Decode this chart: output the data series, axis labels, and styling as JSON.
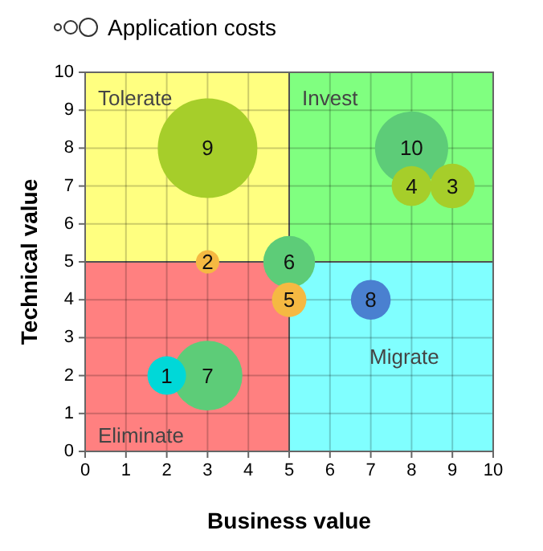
{
  "chart_data": {
    "type": "bubble",
    "xlabel": "Business value",
    "ylabel": "Technical value",
    "xlim": [
      0,
      10
    ],
    "ylim": [
      0,
      10
    ],
    "xticks": [
      0,
      1,
      2,
      3,
      4,
      5,
      6,
      7,
      8,
      9,
      10
    ],
    "yticks": [
      0,
      1,
      2,
      3,
      4,
      5,
      6,
      7,
      8,
      9,
      10
    ],
    "grid": true,
    "legend": "top left",
    "series": [
      {
        "name": "Application costs",
        "x": [
          3,
          8,
          3,
          5,
          9,
          8,
          7,
          2,
          5,
          3
        ],
        "values": [
          8,
          8,
          2,
          5,
          7,
          7,
          4,
          2,
          4,
          5
        ],
        "sizes": [
          1,
          0.54,
          0.49,
          0.27,
          0.2,
          0.16,
          0.16,
          0.15,
          0.12,
          0.055
        ],
        "colors": [
          "#a6ce2a",
          "#5dcc78",
          "#5dcc78",
          "#5dcc78",
          "#a6ce2a",
          "#a6ce2a",
          "#4a80d0",
          "#00d8d8",
          "#f5b942",
          "#f5b942"
        ]
      }
    ],
    "annotations": [
      "Tolerate",
      "Invest",
      "Eliminate",
      "Migrate",
      {
        "text": "9",
        "x": 3,
        "y": 8
      },
      {
        "text": "10",
        "x": 8,
        "y": 8
      },
      {
        "text": "7",
        "x": 3,
        "y": 2
      },
      {
        "text": "6",
        "x": 5,
        "y": 5
      },
      {
        "text": "3",
        "x": 9,
        "y": 7
      },
      {
        "text": "4",
        "x": 8,
        "y": 7
      },
      {
        "text": "8",
        "x": 7,
        "y": 4
      },
      {
        "text": "1",
        "x": 2,
        "y": 2
      },
      {
        "text": "5",
        "x": 5,
        "y": 4
      },
      {
        "text": "2",
        "x": 3,
        "y": 5
      }
    ]
  }
}
